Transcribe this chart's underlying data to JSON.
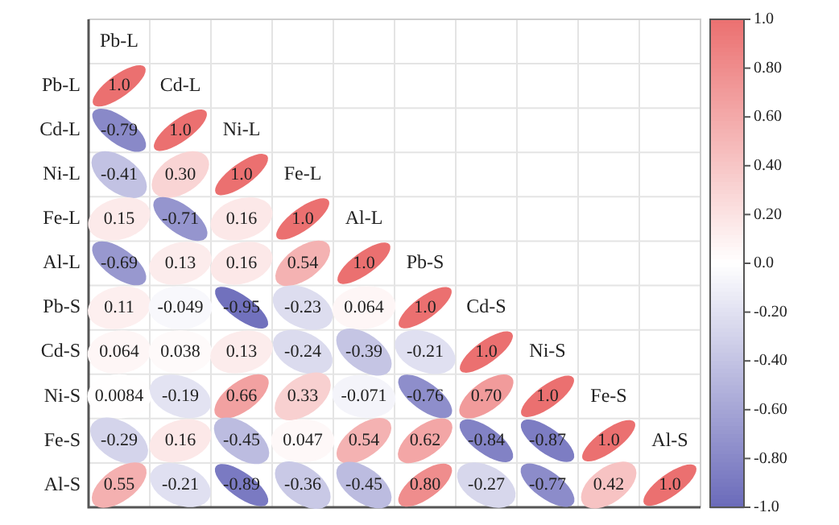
{
  "chart_data": {
    "type": "heatmap",
    "categories": [
      "Pb-L",
      "Cd-L",
      "Ni-L",
      "Fe-L",
      "Al-L",
      "Pb-S",
      "Cd-S",
      "Ni-S",
      "Fe-S",
      "Al-S"
    ],
    "y_categories": [
      "Pb-L",
      "Cd-L",
      "Ni-L",
      "Fe-L",
      "Al-L",
      "Pb-S",
      "Cd-S",
      "Ni-S",
      "Fe-S",
      "Al-S"
    ],
    "cells": [
      [
        1.0,
        null,
        null,
        null,
        null,
        null,
        null,
        null,
        null,
        null
      ],
      [
        -0.79,
        1.0,
        null,
        null,
        null,
        null,
        null,
        null,
        null,
        null
      ],
      [
        -0.41,
        0.3,
        1.0,
        null,
        null,
        null,
        null,
        null,
        null,
        null
      ],
      [
        0.15,
        -0.71,
        0.16,
        1.0,
        null,
        null,
        null,
        null,
        null,
        null
      ],
      [
        -0.69,
        0.13,
        0.16,
        0.54,
        1.0,
        null,
        null,
        null,
        null,
        null
      ],
      [
        0.11,
        -0.049,
        -0.95,
        -0.23,
        0.064,
        1.0,
        null,
        null,
        null,
        null
      ],
      [
        0.064,
        0.038,
        0.13,
        -0.24,
        -0.39,
        -0.21,
        1.0,
        null,
        null,
        null
      ],
      [
        0.0084,
        -0.19,
        0.66,
        0.33,
        -0.071,
        -0.76,
        0.7,
        1.0,
        null,
        null
      ],
      [
        -0.29,
        0.16,
        -0.45,
        0.047,
        0.54,
        0.62,
        -0.84,
        -0.87,
        1.0,
        null
      ],
      [
        0.55,
        -0.21,
        -0.89,
        -0.36,
        -0.45,
        0.8,
        -0.27,
        -0.77,
        0.42,
        1.0
      ]
    ],
    "cell_labels": [
      [
        "1.0",
        null,
        null,
        null,
        null,
        null,
        null,
        null,
        null,
        null
      ],
      [
        "-0.79",
        "1.0",
        null,
        null,
        null,
        null,
        null,
        null,
        null,
        null
      ],
      [
        "-0.41",
        "0.30",
        "1.0",
        null,
        null,
        null,
        null,
        null,
        null,
        null
      ],
      [
        "0.15",
        "-0.71",
        "0.16",
        "1.0",
        null,
        null,
        null,
        null,
        null,
        null
      ],
      [
        "-0.69",
        "0.13",
        "0.16",
        "0.54",
        "1.0",
        null,
        null,
        null,
        null,
        null
      ],
      [
        "0.11",
        "-0.049",
        "-0.95",
        "-0.23",
        "0.064",
        "1.0",
        null,
        null,
        null,
        null
      ],
      [
        "0.064",
        "0.038",
        "0.13",
        "-0.24",
        "-0.39",
        "-0.21",
        "1.0",
        null,
        null,
        null
      ],
      [
        "0.0084",
        "-0.19",
        "0.66",
        "0.33",
        "-0.071",
        "-0.76",
        "0.70",
        "1.0",
        null,
        null
      ],
      [
        "-0.29",
        "0.16",
        "-0.45",
        "0.047",
        "0.54",
        "0.62",
        "-0.84",
        "-0.87",
        "1.0",
        null
      ],
      [
        "0.55",
        "-0.21",
        "-0.89",
        "-0.36",
        "-0.45",
        "0.80",
        "-0.27",
        "-0.77",
        "0.42",
        "1.0"
      ]
    ],
    "clim": [
      -1.0,
      1.0
    ],
    "cticks": [
      {
        "value": 1.0,
        "label": "1.0"
      },
      {
        "value": 0.8,
        "label": "0.80"
      },
      {
        "value": 0.6,
        "label": "0.60"
      },
      {
        "value": 0.4,
        "label": "0.40"
      },
      {
        "value": 0.2,
        "label": "0.20"
      },
      {
        "value": 0,
        "label": "0.0"
      },
      {
        "value": -0.2,
        "label": "-0.20"
      },
      {
        "value": -0.4,
        "label": "-0.40"
      },
      {
        "value": -0.6,
        "label": "-0.60"
      },
      {
        "value": -0.8,
        "label": "-0.80"
      },
      {
        "value": -1.0,
        "label": "-1.0"
      }
    ]
  }
}
